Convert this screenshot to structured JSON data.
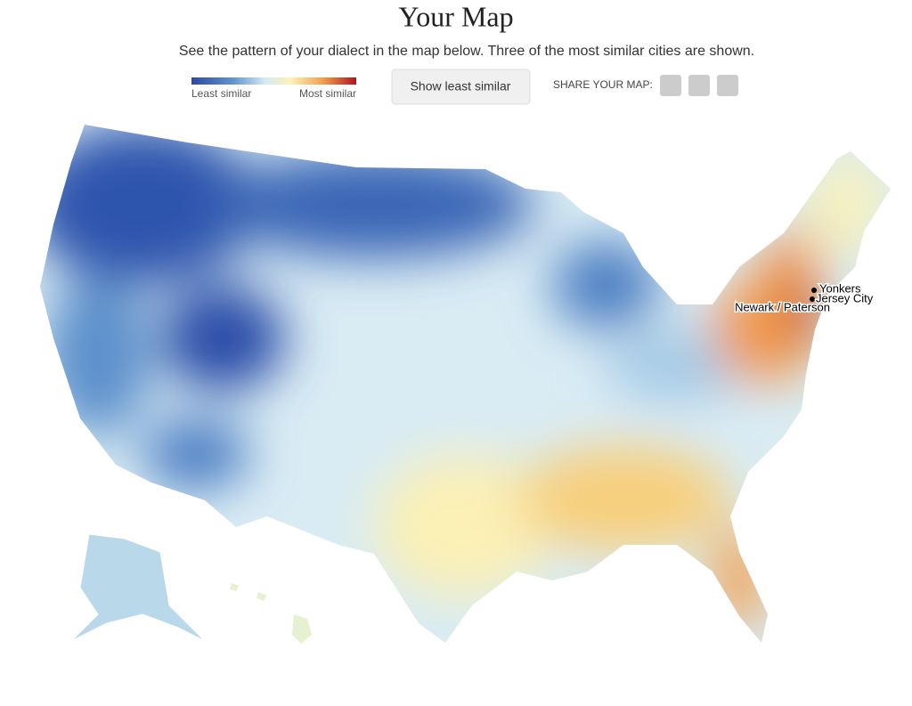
{
  "header": {
    "title": "Your Map",
    "subtitle": "See the pattern of your dialect in the map below. Three of the most similar cities are shown."
  },
  "legend": {
    "least": "Least similar",
    "most": "Most similar"
  },
  "button": {
    "label": "Show least similar"
  },
  "share": {
    "label": "SHARE YOUR MAP:"
  },
  "map": {
    "cities": [
      {
        "label": "Yonkers"
      },
      {
        "label": "Jersey City"
      },
      {
        "label": "Newark / Paterson"
      }
    ]
  }
}
